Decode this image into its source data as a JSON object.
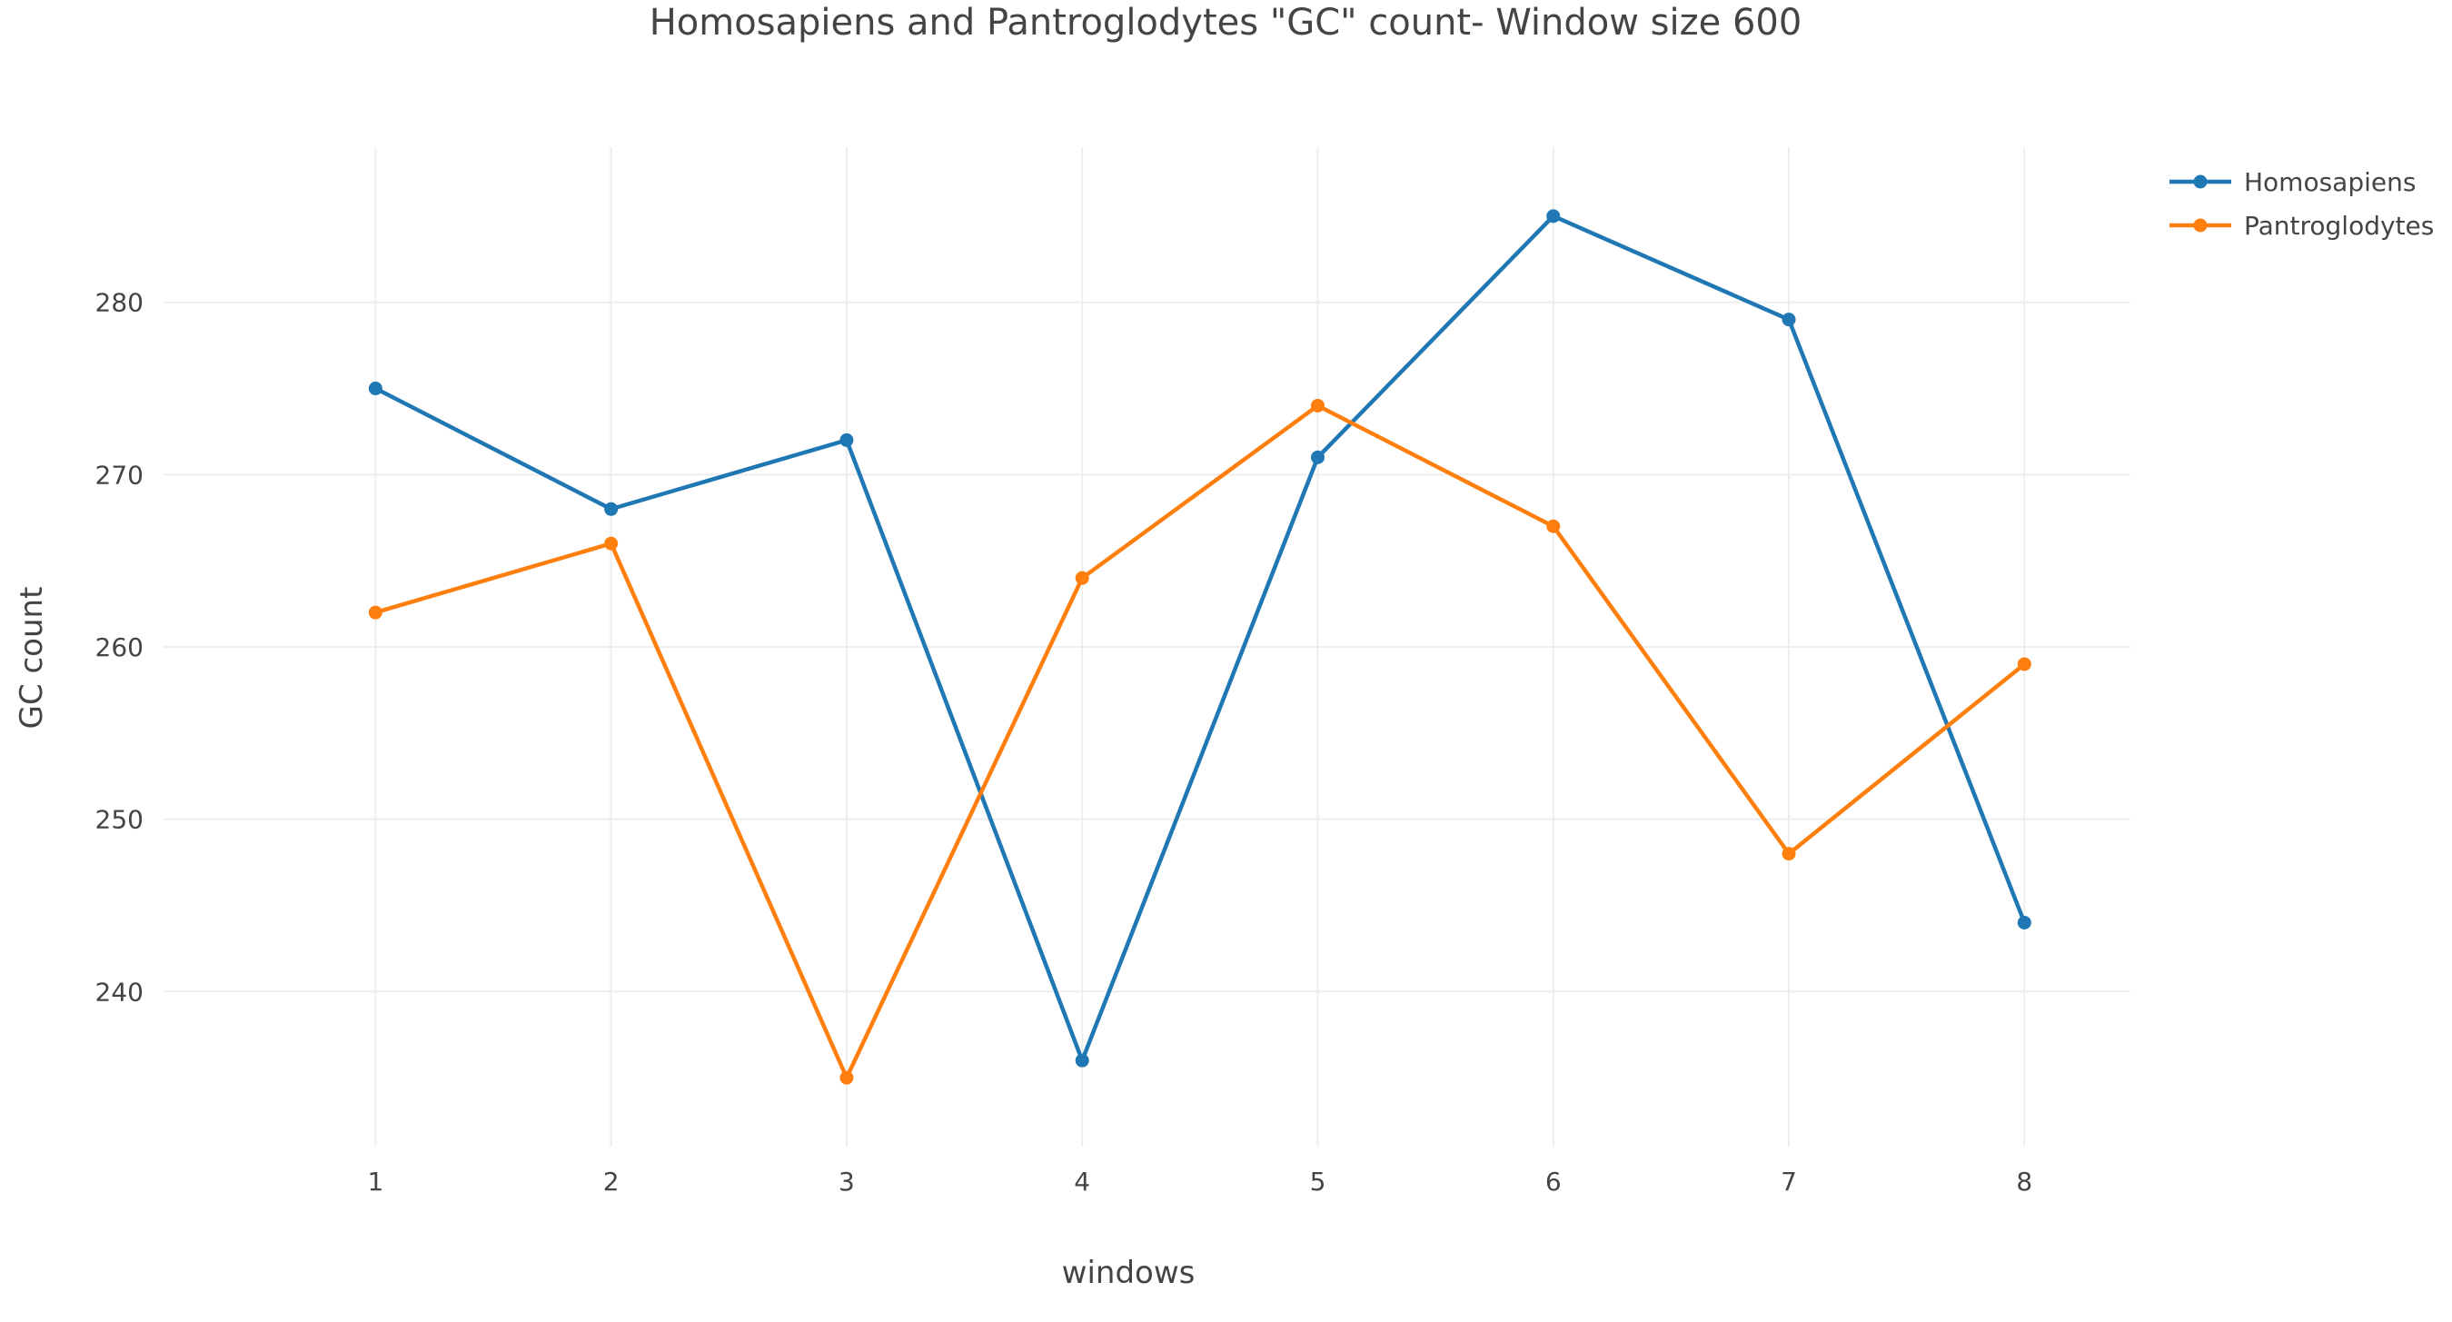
{
  "chart_data": {
    "type": "line",
    "title": "Homosapiens and Pantroglodytes \"GC\" count- Window size 600",
    "xlabel": "windows",
    "ylabel": "GC count",
    "x": [
      1,
      2,
      3,
      4,
      5,
      6,
      7,
      8
    ],
    "xlim": [
      0.1,
      8.45
    ],
    "ylim": [
      231,
      289
    ],
    "yticks": [
      240,
      250,
      260,
      270,
      280
    ],
    "grid": true,
    "legend_position": "top-right",
    "series": [
      {
        "name": "Homosapiens",
        "color": "#1f77b4",
        "values": [
          275,
          268,
          272,
          236,
          271,
          285,
          279,
          244
        ]
      },
      {
        "name": "Pantroglodytes",
        "color": "#ff7f0e",
        "values": [
          262,
          266,
          235,
          264,
          274,
          267,
          248,
          259
        ]
      }
    ]
  }
}
